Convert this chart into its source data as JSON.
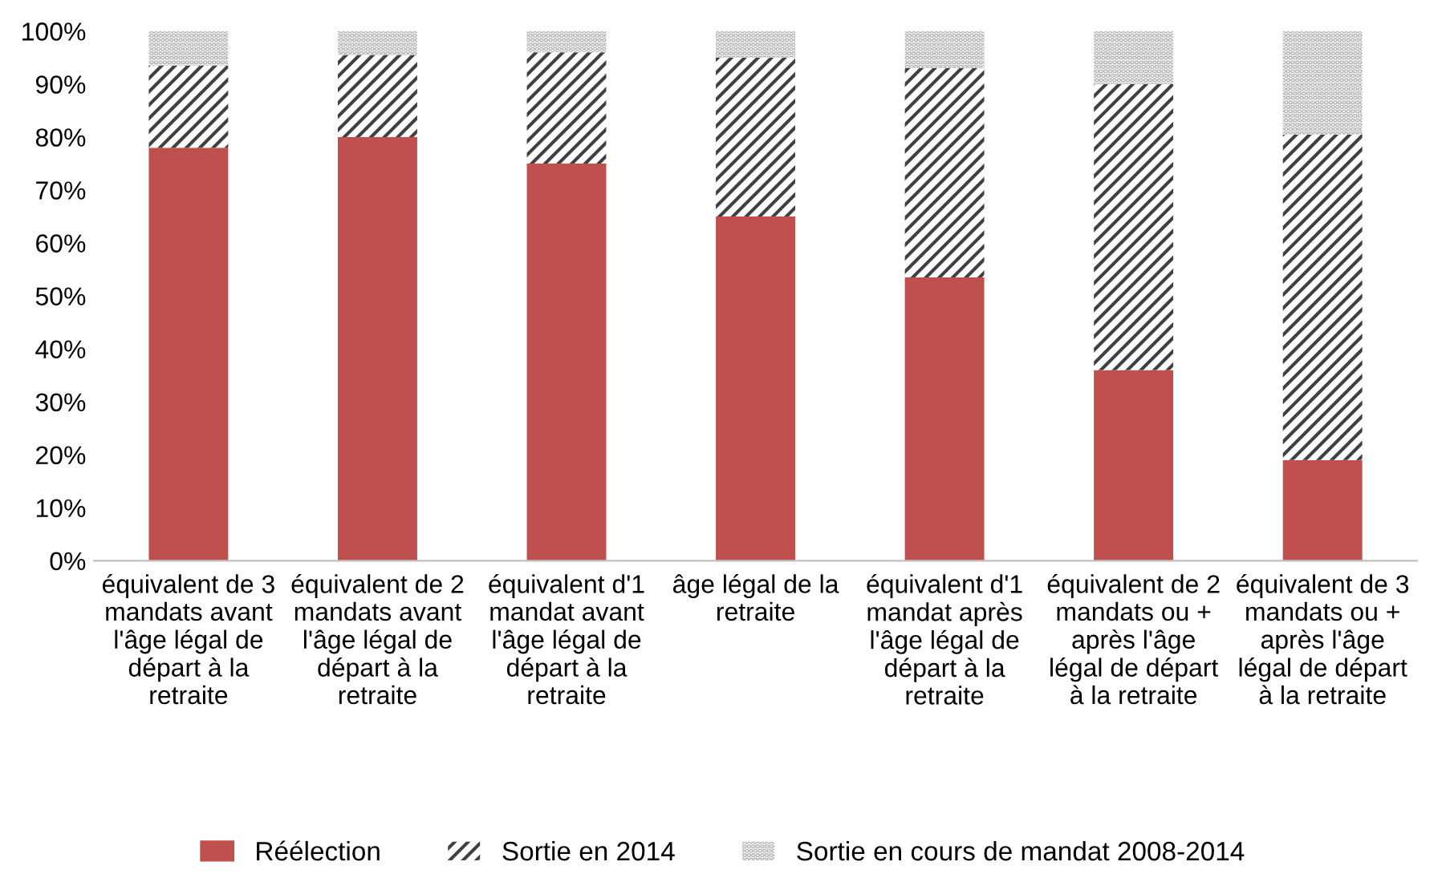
{
  "chart_data": {
    "type": "bar",
    "stacked": true,
    "categories": [
      "équivalent de 3\nmandats avant\nl'âge légal de\ndépart à la\nretraite",
      "équivalent de 2\nmandats avant\nl'âge légal de\ndépart à la\nretraite",
      "équivalent d'1\nmandat avant\nl'âge légal de\ndépart à la\nretraite",
      "âge légal de la\nretraite",
      "équivalent d'1\nmandat après\nl'âge légal de\ndépart à la\nretraite",
      "équivalent de 2\nmandats ou +\naprès l'âge\nlégal de départ\nà la retraite",
      "équivalent de 3\nmandats ou +\naprès l'âge\nlégal de départ\nà la retraite"
    ],
    "series": [
      {
        "name": "Réélection",
        "color": "#c0504d",
        "values": [
          78,
          80,
          75,
          65,
          53.5,
          36,
          19
        ]
      },
      {
        "name": "Sortie en 2014",
        "color": "#404040",
        "values": [
          15.5,
          15.5,
          21,
          30,
          39.5,
          54,
          61.5
        ]
      },
      {
        "name": "Sortie en cours de mandat 2008-2014",
        "color": "#a6a6a6",
        "values": [
          6.5,
          4.5,
          4,
          5,
          7,
          10,
          19.5
        ]
      }
    ],
    "ylim": [
      0,
      100
    ],
    "yticks": [
      {
        "value": 0,
        "label": "0%"
      },
      {
        "value": 10,
        "label": "10%"
      },
      {
        "value": 20,
        "label": "20%"
      },
      {
        "value": 30,
        "label": "30%"
      },
      {
        "value": 40,
        "label": "40%"
      },
      {
        "value": 50,
        "label": "50%"
      },
      {
        "value": 60,
        "label": "60%"
      },
      {
        "value": 70,
        "label": "70%"
      },
      {
        "value": 80,
        "label": "80%"
      },
      {
        "value": 90,
        "label": "90%"
      },
      {
        "value": 100,
        "label": "100%"
      }
    ],
    "grid": false,
    "legend": "bottom"
  }
}
